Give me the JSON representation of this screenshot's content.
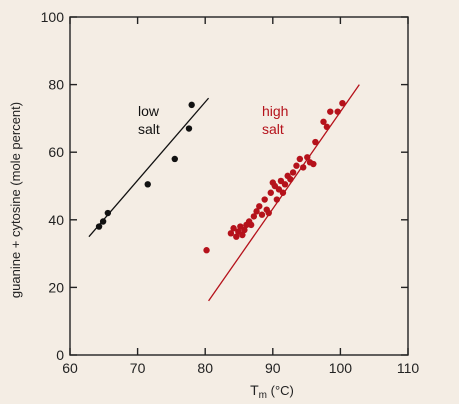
{
  "chart_data": {
    "type": "scatter",
    "xlabel_main": "T",
    "xlabel_sub": "m",
    "xlabel_unit": " (°C)",
    "ylabel": "guanine + cytosine (mole percent)",
    "xlim": [
      60,
      110
    ],
    "ylim": [
      0,
      100
    ],
    "x_ticks": [
      "60",
      "70",
      "80",
      "90",
      "100",
      "110"
    ],
    "y_ticks": [
      "0",
      "20",
      "40",
      "60",
      "80",
      "100"
    ],
    "grid": false,
    "series": [
      {
        "color": "#111111",
        "points": [
          {
            "x": 64.3,
            "y": 38.0
          },
          {
            "x": 64.9,
            "y": 39.5
          },
          {
            "x": 65.6,
            "y": 42.0
          },
          {
            "x": 71.5,
            "y": 50.5
          },
          {
            "x": 75.5,
            "y": 58.0
          },
          {
            "x": 77.6,
            "y": 67.0
          },
          {
            "x": 78.0,
            "y": 74.0
          }
        ],
        "fit": {
          "x1": 62.8,
          "y1": 35.0,
          "x2": 80.5,
          "y2": 76.0
        },
        "label_lines": [
          "low",
          "salt"
        ],
        "label_color": "#111111"
      },
      {
        "color": "#b5121b",
        "points": [
          {
            "x": 80.2,
            "y": 31.0
          },
          {
            "x": 83.8,
            "y": 36.0
          },
          {
            "x": 84.2,
            "y": 37.5
          },
          {
            "x": 84.6,
            "y": 35.0
          },
          {
            "x": 84.9,
            "y": 36.5
          },
          {
            "x": 85.2,
            "y": 38.0
          },
          {
            "x": 85.5,
            "y": 35.5
          },
          {
            "x": 85.8,
            "y": 37.0
          },
          {
            "x": 86.1,
            "y": 38.5
          },
          {
            "x": 86.5,
            "y": 39.5
          },
          {
            "x": 86.8,
            "y": 38.5
          },
          {
            "x": 87.2,
            "y": 41.0
          },
          {
            "x": 87.6,
            "y": 42.5
          },
          {
            "x": 88.0,
            "y": 44.0
          },
          {
            "x": 88.4,
            "y": 41.5
          },
          {
            "x": 88.8,
            "y": 46.0
          },
          {
            "x": 89.1,
            "y": 43.0
          },
          {
            "x": 89.4,
            "y": 42.0
          },
          {
            "x": 89.7,
            "y": 48.0
          },
          {
            "x": 90.0,
            "y": 51.0
          },
          {
            "x": 90.3,
            "y": 50.0
          },
          {
            "x": 90.6,
            "y": 46.0
          },
          {
            "x": 90.9,
            "y": 49.0
          },
          {
            "x": 91.2,
            "y": 51.5
          },
          {
            "x": 91.5,
            "y": 48.0
          },
          {
            "x": 91.8,
            "y": 50.5
          },
          {
            "x": 92.2,
            "y": 53.0
          },
          {
            "x": 92.6,
            "y": 52.0
          },
          {
            "x": 93.0,
            "y": 54.0
          },
          {
            "x": 93.5,
            "y": 56.0
          },
          {
            "x": 94.0,
            "y": 58.0
          },
          {
            "x": 94.5,
            "y": 55.5
          },
          {
            "x": 95.1,
            "y": 58.5
          },
          {
            "x": 95.5,
            "y": 57.0
          },
          {
            "x": 96.0,
            "y": 56.5
          },
          {
            "x": 96.3,
            "y": 63.0
          },
          {
            "x": 97.5,
            "y": 69.0
          },
          {
            "x": 98.0,
            "y": 67.5
          },
          {
            "x": 98.5,
            "y": 72.0
          },
          {
            "x": 99.6,
            "y": 72.0
          },
          {
            "x": 100.3,
            "y": 74.5
          }
        ],
        "fit": {
          "x1": 80.5,
          "y1": 16.0,
          "x2": 102.8,
          "y2": 80.0
        },
        "label_lines": [
          "high",
          "salt"
        ],
        "label_color": "#b5121b"
      }
    ]
  }
}
